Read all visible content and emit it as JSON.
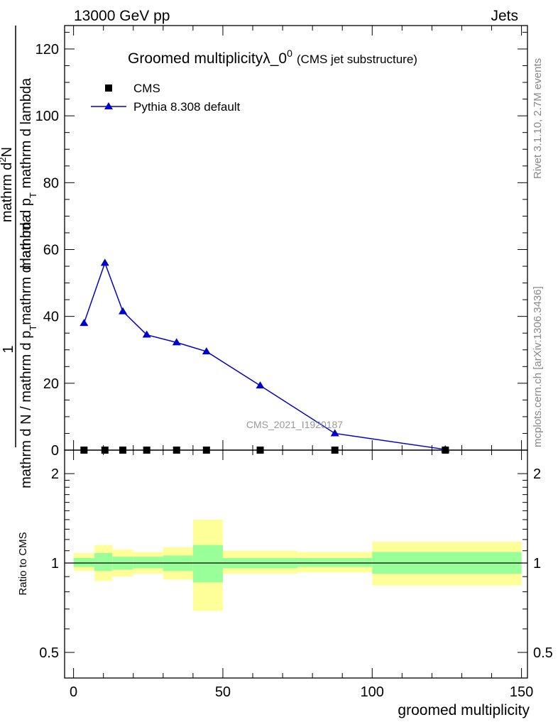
{
  "header": {
    "energy": "13000 GeV pp",
    "process": "Jets"
  },
  "side_labels": {
    "rivet": "Rivet 3.1.10,  2.7M events",
    "mcplots": "mcplots.cern.ch [arXiv:1306.3436]"
  },
  "title": {
    "main": "Groomed multiplicityλ_0",
    "superscript": "0",
    "sub": "(CMS jet substructure)"
  },
  "legend": {
    "data_label": "CMS",
    "mc_label": "Pythia 8.308 default"
  },
  "watermark": "CMS_2021_I1920187",
  "ylabel": {
    "numerator_one": "1",
    "denominator_part1": "mathrm d N / mathrm d p",
    "denominator_sub1": "T",
    "denominator_part2": "mathrm d lambda",
    "numerator_part1": "mathrm d",
    "numerator_sup": "2",
    "numerator_part2": "N",
    "numerator_line2": "mathrm d p",
    "numerator_sub2": "T",
    "numerator_line3": " mathrm d lambda"
  },
  "ratio_ylabel": "Ratio to CMS",
  "xlabel": "groomed multiplicity",
  "colors": {
    "mc": "#0000cc",
    "data": "#000000",
    "band_inner": "#99ff99",
    "band_outer": "#ffff99"
  },
  "chart_data": [
    {
      "type": "line",
      "panel": "main",
      "xlim": [
        -3,
        152
      ],
      "ylim": [
        0,
        127
      ],
      "y_ticks": [
        0,
        20,
        40,
        60,
        80,
        100,
        120
      ],
      "y_tick_labels": [
        "0",
        "20",
        "40",
        "60",
        "80",
        "100",
        "120"
      ],
      "series": [
        {
          "name": "CMS",
          "marker": "square",
          "x": [
            3.5,
            10.5,
            16.5,
            24.5,
            34.5,
            44.5,
            62.5,
            87.5,
            124.5
          ],
          "y": [
            0,
            0,
            0,
            0,
            0,
            0,
            0,
            0,
            0
          ]
        },
        {
          "name": "Pythia 8.308 default",
          "marker": "triangle",
          "x": [
            3.5,
            10.5,
            16.5,
            24.5,
            34.5,
            44.5,
            62.5,
            87.5,
            124.5
          ],
          "y": [
            38,
            56,
            41.5,
            34.5,
            32.2,
            29.5,
            19.3,
            5,
            0.2
          ]
        }
      ]
    },
    {
      "type": "area",
      "panel": "ratio",
      "xlim": [
        -3,
        152
      ],
      "ylim": [
        0.41,
        2.4
      ],
      "log_y": true,
      "y_ticks": [
        0.5,
        1,
        2
      ],
      "y_tick_labels": [
        "0.5",
        "1",
        "2"
      ],
      "x_ticks": [
        0,
        50,
        100,
        150
      ],
      "x_tick_labels": [
        "0",
        "50",
        "100",
        "150"
      ],
      "bins": [
        {
          "lo": 0,
          "hi": 7,
          "inner": [
            0.97,
            1.04
          ],
          "outer": [
            0.94,
            1.08
          ]
        },
        {
          "lo": 7,
          "hi": 13,
          "inner": [
            0.94,
            1.08
          ],
          "outer": [
            0.87,
            1.15
          ]
        },
        {
          "lo": 13,
          "hi": 20,
          "inner": [
            0.95,
            1.05
          ],
          "outer": [
            0.9,
            1.11
          ]
        },
        {
          "lo": 20,
          "hi": 30,
          "inner": [
            0.96,
            1.05
          ],
          "outer": [
            0.92,
            1.09
          ]
        },
        {
          "lo": 30,
          "hi": 40,
          "inner": [
            0.94,
            1.06
          ],
          "outer": [
            0.88,
            1.13
          ]
        },
        {
          "lo": 40,
          "hi": 50,
          "inner": [
            0.86,
            1.15
          ],
          "outer": [
            0.69,
            1.4
          ]
        },
        {
          "lo": 50,
          "hi": 75,
          "inner": [
            0.96,
            1.04
          ],
          "outer": [
            0.92,
            1.1
          ]
        },
        {
          "lo": 75,
          "hi": 100,
          "inner": [
            0.97,
            1.04
          ],
          "outer": [
            0.93,
            1.09
          ]
        },
        {
          "lo": 100,
          "hi": 150,
          "inner": [
            0.92,
            1.09
          ],
          "outer": [
            0.84,
            1.18
          ]
        }
      ],
      "ref_line": 1
    }
  ]
}
